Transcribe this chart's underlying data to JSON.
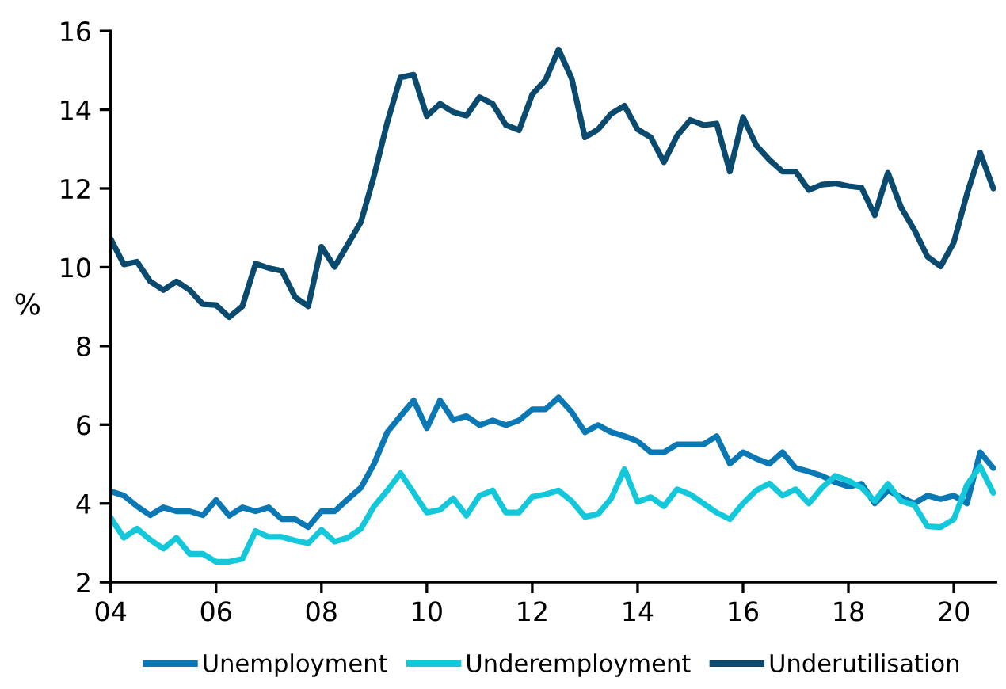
{
  "chart_data": {
    "type": "line",
    "ylabel": "%",
    "x": [
      2004.0,
      2004.25,
      2004.5,
      2004.75,
      2005.0,
      2005.25,
      2005.5,
      2005.75,
      2006.0,
      2006.25,
      2006.5,
      2006.75,
      2007.0,
      2007.25,
      2007.5,
      2007.75,
      2008.0,
      2008.25,
      2008.5,
      2008.75,
      2009.0,
      2009.25,
      2009.5,
      2009.75,
      2010.0,
      2010.25,
      2010.5,
      2010.75,
      2011.0,
      2011.25,
      2011.5,
      2011.75,
      2012.0,
      2012.25,
      2012.5,
      2012.75,
      2013.0,
      2013.25,
      2013.5,
      2013.75,
      2014.0,
      2014.25,
      2014.5,
      2014.75,
      2015.0,
      2015.25,
      2015.5,
      2015.75,
      2016.0,
      2016.25,
      2016.5,
      2016.75,
      2017.0,
      2017.25,
      2017.5,
      2017.75,
      2018.0,
      2018.25,
      2018.5,
      2018.75,
      2019.0,
      2019.25,
      2019.5,
      2019.75,
      2020.0,
      2020.25,
      2020.5,
      2020.75
    ],
    "series": [
      {
        "name": "Unemployment",
        "color": "#0a78b4",
        "values": [
          4.31,
          4.2,
          3.93,
          3.7,
          3.9,
          3.8,
          3.8,
          3.7,
          4.09,
          3.69,
          3.9,
          3.8,
          3.9,
          3.6,
          3.6,
          3.4,
          3.8,
          3.8,
          4.11,
          4.4,
          5.01,
          5.81,
          6.22,
          6.62,
          5.91,
          6.62,
          6.12,
          6.22,
          5.99,
          6.11,
          5.99,
          6.11,
          6.39,
          6.39,
          6.69,
          6.32,
          5.81,
          5.99,
          5.81,
          5.71,
          5.58,
          5.3,
          5.3,
          5.5,
          5.5,
          5.5,
          5.71,
          5.01,
          5.3,
          5.14,
          5.01,
          5.3,
          4.9,
          4.81,
          4.7,
          4.54,
          4.43,
          4.5,
          4.0,
          4.33,
          4.16,
          4.0,
          4.2,
          4.11,
          4.2,
          4.0,
          5.3,
          4.9
        ]
      },
      {
        "name": "Underemployment",
        "color": "#14c8dc",
        "values": [
          3.64,
          3.13,
          3.36,
          3.08,
          2.85,
          3.13,
          2.72,
          2.72,
          2.52,
          2.52,
          2.59,
          3.3,
          3.15,
          3.15,
          3.06,
          2.99,
          3.33,
          3.03,
          3.13,
          3.36,
          3.93,
          4.33,
          4.77,
          4.27,
          3.77,
          3.84,
          4.13,
          3.69,
          4.2,
          4.33,
          3.77,
          3.77,
          4.17,
          4.23,
          4.33,
          4.06,
          3.66,
          3.73,
          4.13,
          4.87,
          4.04,
          4.16,
          3.93,
          4.36,
          4.23,
          4.0,
          3.77,
          3.6,
          4.0,
          4.33,
          4.51,
          4.2,
          4.36,
          4.0,
          4.4,
          4.7,
          4.58,
          4.4,
          4.06,
          4.5,
          4.06,
          3.96,
          3.42,
          3.4,
          3.6,
          4.47,
          4.94,
          4.27
        ]
      },
      {
        "name": "Underutilisation",
        "color": "#0a4a6e",
        "values": [
          10.72,
          10.07,
          10.14,
          9.64,
          9.42,
          9.64,
          9.42,
          9.06,
          9.04,
          8.73,
          9.01,
          10.09,
          9.98,
          9.91,
          9.24,
          9.01,
          10.52,
          10.01,
          10.58,
          11.15,
          12.33,
          13.68,
          14.82,
          14.89,
          13.84,
          14.15,
          13.94,
          13.85,
          14.32,
          14.15,
          13.61,
          13.48,
          14.39,
          14.75,
          15.53,
          14.79,
          13.3,
          13.5,
          13.9,
          14.1,
          13.5,
          13.3,
          12.67,
          13.34,
          13.74,
          13.61,
          13.65,
          12.43,
          13.81,
          13.1,
          12.73,
          12.43,
          12.43,
          11.96,
          12.1,
          12.13,
          12.06,
          12.02,
          11.32,
          12.4,
          11.52,
          10.95,
          10.27,
          10.02,
          10.63,
          11.86,
          12.91,
          12.0
        ]
      }
    ],
    "xlim": [
      2004,
      2020.8
    ],
    "xticks": [
      {
        "value": 2004,
        "label": "04"
      },
      {
        "value": 2006,
        "label": "06"
      },
      {
        "value": 2008,
        "label": "08"
      },
      {
        "value": 2010,
        "label": "10"
      },
      {
        "value": 2012,
        "label": "12"
      },
      {
        "value": 2014,
        "label": "14"
      },
      {
        "value": 2016,
        "label": "16"
      },
      {
        "value": 2018,
        "label": "18"
      },
      {
        "value": 2020,
        "label": "20"
      }
    ],
    "ylim": [
      2,
      16
    ],
    "yticks": [
      2,
      4,
      6,
      8,
      10,
      12,
      14,
      16
    ],
    "grid": false,
    "legend": "bottom",
    "line_style": "solid",
    "marker": "none"
  }
}
